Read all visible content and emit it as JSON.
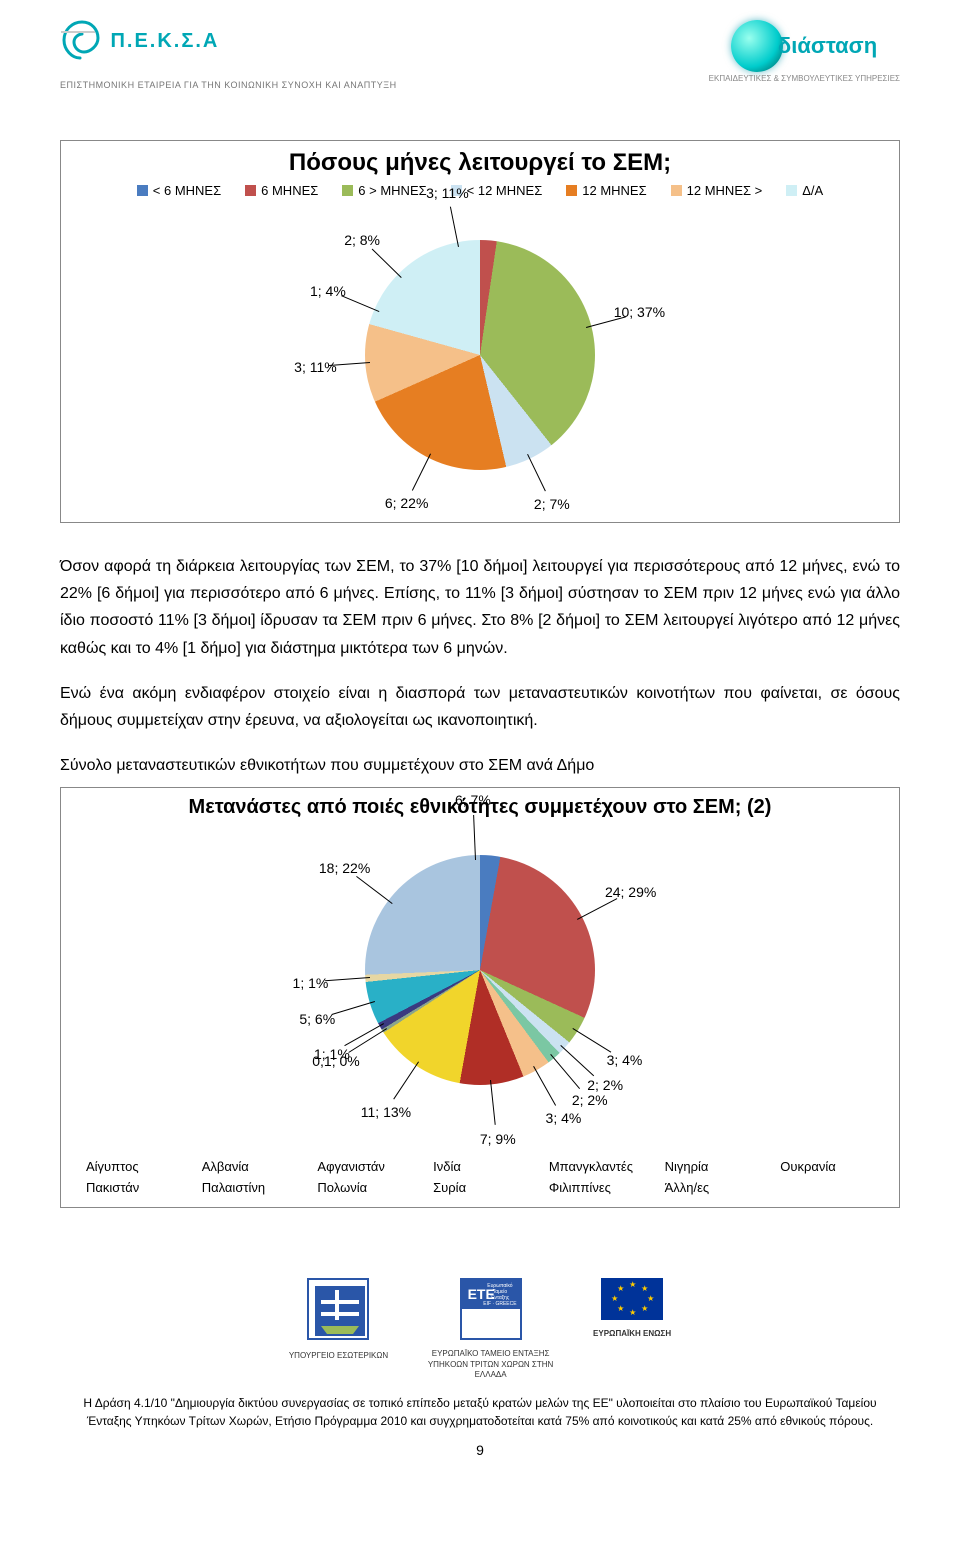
{
  "header": {
    "brand": "Π.Ε.Κ.Σ.Α",
    "sub": "ΕΠΙΣΤΗΜΟΝΙΚΗ ΕΤΑΙΡΕΙΑ ΓΙΑ ΤΗΝ ΚΟΙΝΩΝΙΚΗ ΣΥΝΟΧΗ ΚΑΙ ΑΝΑΠΤΥΞΗ",
    "brand_color": "#00a7b5",
    "right_main": "διάσταση",
    "right_sub": "ΕΚΠΑΙΔΕΥΤΙΚΕΣ & ΣΥΜΒΟΥΛΕΥΤΙΚΕΣ\nΥΠΗΡΕΣΙΕΣ"
  },
  "chart1": {
    "type": "pie",
    "title": "Πόσους μήνες λειτουργεί το ΣΕΜ;",
    "title_fontsize": 24,
    "legend_fontsize": 13,
    "label_fontsize": 14,
    "categories": [
      "< 6 ΜΗΝΕΣ",
      "6 ΜΗΝΕΣ",
      "6 > ΜΗΝΕΣ",
      "< 12 ΜΗΝΕΣ",
      "12 ΜΗΝΕΣ",
      "12 ΜΗΝΕΣ >",
      "Δ/Α"
    ],
    "labels": [
      "2; 8%",
      "3; 11%",
      "10; 37%",
      "2; 7%",
      "6; 22%",
      "3; 11%",
      "1; 4%"
    ],
    "percent": [
      8,
      11,
      37,
      7,
      22,
      11,
      4
    ],
    "colors": [
      "#4a7cc0",
      "#c0504d",
      "#9bbb59",
      "#cbe2f1",
      "#e67e22",
      "#f5c089",
      "#cfeff5"
    ],
    "background_color": "#ffffff"
  },
  "para1": "Όσον αφορά τη διάρκεια λειτουργίας των ΣΕΜ, το 37% [10 δήμοι] λειτουργεί για περισσότερους από 12 μήνες, ενώ το 22% [6 δήμοι] για περισσότερο από 6 μήνες. Επίσης, το 11% [3 δήμοι] σύστησαν το ΣΕΜ πριν 12 μήνες ενώ για άλλο ίδιο ποσοστό 11% [3 δήμοι] ίδρυσαν τα ΣΕΜ πριν 6 μήνες. Στο 8% [2 δήμοι] το ΣΕΜ λειτουργεί λιγότερο από 12 μήνες καθώς και το 4% [1 δήμο] για διάστημα μικτότερα των 6 μηνών.",
  "para2": "Ενώ ένα ακόμη ενδιαφέρον στοιχείο είναι η διασπορά των μεταναστευτικών κοινοτήτων που φαίνεται, σε όσους δήμους συμμετείχαν στην έρευνα, να αξιολογείται ως ικανοποιητική.",
  "para3_title": "Σύνολο μεταναστευτικών εθνικοτήτων που συμμετέχουν στο ΣΕΜ ανά Δήμο",
  "chart2": {
    "type": "pie",
    "title": "Μετανάστες από ποιές εθνικότητες συμμετέχουν στο ΣΕΜ; (2)",
    "title_fontsize": 20,
    "legend_fontsize": 13,
    "label_fontsize": 14,
    "categories": [
      "Αίγυπτος",
      "Αλβανία",
      "Αφγανιστάν",
      "Ινδία",
      "Μπανγκλαντές",
      "Νιγηρία",
      "Ουκρανία",
      "Πακιστάν",
      "Παλαιστίνη",
      "Πολωνία",
      "Συρία",
      "Φιλιππίνες",
      "Άλλη/ες"
    ],
    "labels": [
      "6; 7%",
      "24; 29%",
      "3; 4%",
      "2; 2%",
      "2; 2%",
      "3; 4%",
      "7; 9%",
      "11; 13%",
      "0,1; 0%",
      "1; 1%",
      "5; 6%",
      "1; 1%",
      "18; 22%"
    ],
    "percent": [
      7,
      29,
      4,
      2,
      2,
      4,
      9,
      13,
      0.5,
      1,
      6,
      1,
      22
    ],
    "colors": [
      "#4a7cc0",
      "#c0504d",
      "#9bbb59",
      "#cbe2f1",
      "#7bc7a3",
      "#f5c08a",
      "#b02e26",
      "#f1d52b",
      "#8aa58c",
      "#3a3a80",
      "#29b0c7",
      "#e6d7a3",
      "#a9c5df"
    ],
    "background_color": "#ffffff"
  },
  "footer": {
    "l1": "ΥΠΟΥΡΓΕΙΟ ΕΣΩΤΕΡΙΚΩΝ",
    "l2": "ΕΥΡΩΠΑΪΚΟ ΤΑΜΕΙΟ ΕΝΤΑΞΗΣ\nΥΠΗKΟΩΝ ΤΡΙΤΩΝ ΧΩΡΩΝ\nΣΤΗΝ ΕΛΛΑΔΑ",
    "l3": "ΕΥΡΩΠΑΪΚΗ ΕΝΩΣΗ",
    "text": "Η Δράση 4.1/10 \"Δημιουργία δικτύου συνεργασίας σε τοπικό επίπεδο μεταξύ κρατών μελών της ΕΕ\" υλοποιείται στο πλαίσιο του Ευρωπαϊκού Ταμείου Ένταξης Υπηκόων Τρίτων Χωρών, Ετήσιο Πρόγραμμα 2010 και συγχρηματοδοτείται κατά 75% από κοινοτικούς και κατά 25% από εθνικούς πόρους.",
    "page": "9"
  }
}
